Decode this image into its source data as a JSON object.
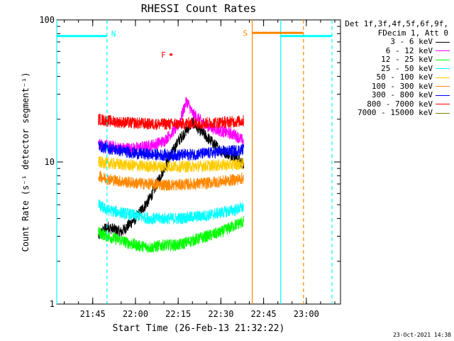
{
  "chart_data": {
    "type": "line",
    "title": "RHESSI Count Rates",
    "xlabel": "Start Time (26-Feb-13 21:32:22)",
    "ylabel": "Count Rate (s⁻¹ detector segment⁻¹)",
    "yscale": "log",
    "ylim": [
      1,
      100
    ],
    "y_ticks": [
      "1",
      "10",
      "100"
    ],
    "x_ticks": [
      "21:45",
      "22:00",
      "22:15",
      "22:30",
      "22:45",
      "23:00"
    ],
    "x_range": [
      "21:32:22",
      "23:12"
    ],
    "grid": false,
    "legend_placement": "right",
    "legend_header": [
      "Det 1f,3f,4f,5f,6f,9f,",
      "FDecim 1, Att 0"
    ],
    "series": [
      {
        "name": "3 - 6 keV",
        "color": "#000000",
        "x": [
          "21:47",
          "21:50",
          "21:55",
          "22:00",
          "22:05",
          "22:10",
          "22:15",
          "22:20",
          "22:25",
          "22:30",
          "22:35",
          "22:38"
        ],
        "values": [
          3.0,
          3.5,
          3.2,
          4.0,
          5.5,
          9.0,
          14.0,
          19.0,
          15.0,
          12.0,
          11.0,
          9.5
        ]
      },
      {
        "name": "6 - 12 keV",
        "color": "#ff00ff",
        "x": [
          "21:47",
          "21:50",
          "21:55",
          "22:00",
          "22:05",
          "22:10",
          "22:15",
          "22:18",
          "22:20",
          "22:25",
          "22:30",
          "22:35",
          "22:38"
        ],
        "values": [
          13.5,
          13.0,
          12.5,
          12.5,
          13.0,
          14.0,
          18.0,
          27.0,
          22.0,
          18.0,
          16.5,
          15.5,
          14.0
        ]
      },
      {
        "name": "12 - 25 keV",
        "color": "#00ff00",
        "x": [
          "21:47",
          "21:50",
          "21:55",
          "22:00",
          "22:05",
          "22:10",
          "22:15",
          "22:20",
          "22:25",
          "22:30",
          "22:35",
          "22:38"
        ],
        "values": [
          3.2,
          3.0,
          2.8,
          2.6,
          2.5,
          2.6,
          2.6,
          2.8,
          3.0,
          3.2,
          3.6,
          3.8
        ]
      },
      {
        "name": "25 - 50 keV",
        "color": "#00ffff",
        "x": [
          "21:47",
          "21:50",
          "21:55",
          "22:00",
          "22:05",
          "22:10",
          "22:15",
          "22:20",
          "22:25",
          "22:30",
          "22:35",
          "22:38"
        ],
        "values": [
          5.0,
          4.6,
          4.4,
          4.2,
          4.0,
          4.0,
          4.0,
          4.1,
          4.2,
          4.4,
          4.6,
          4.8
        ]
      },
      {
        "name": "50 - 100 keV",
        "color": "#ffcc00",
        "x": [
          "21:47",
          "21:50",
          "21:55",
          "22:00",
          "22:05",
          "22:10",
          "22:15",
          "22:20",
          "22:25",
          "22:30",
          "22:35",
          "22:38"
        ],
        "values": [
          10.0,
          9.8,
          9.6,
          9.4,
          9.3,
          9.3,
          9.3,
          9.3,
          9.4,
          9.5,
          9.6,
          9.7
        ]
      },
      {
        "name": "100 - 300 keV",
        "color": "#ff8800",
        "x": [
          "21:47",
          "21:50",
          "21:55",
          "22:00",
          "22:05",
          "22:10",
          "22:15",
          "22:20",
          "22:25",
          "22:30",
          "22:35",
          "22:38"
        ],
        "values": [
          8.0,
          7.6,
          7.3,
          7.1,
          7.0,
          6.9,
          6.9,
          7.0,
          7.1,
          7.3,
          7.5,
          7.7
        ]
      },
      {
        "name": "300 - 800 keV",
        "color": "#0000ff",
        "x": [
          "21:47",
          "21:50",
          "21:55",
          "22:00",
          "22:05",
          "22:10",
          "22:15",
          "22:20",
          "22:25",
          "22:30",
          "22:35",
          "22:38"
        ],
        "values": [
          13.0,
          12.5,
          12.0,
          11.5,
          11.3,
          11.2,
          11.2,
          11.3,
          11.5,
          11.8,
          12.0,
          12.3
        ]
      },
      {
        "name": "800 - 7000 keV",
        "color": "#ff0000",
        "x": [
          "21:47",
          "21:50",
          "21:55",
          "22:00",
          "22:05",
          "22:10",
          "22:15",
          "22:20",
          "22:25",
          "22:30",
          "22:35",
          "22:38"
        ],
        "values": [
          20.0,
          19.5,
          19.0,
          18.8,
          18.5,
          18.5,
          18.5,
          18.7,
          18.8,
          19.0,
          19.2,
          19.5
        ]
      },
      {
        "name": "7000 - 15000 keV",
        "color": "#808000",
        "x": [],
        "values": []
      }
    ],
    "flag_bars": [
      {
        "label": "N",
        "color": "#00ffff",
        "y": 77,
        "segments": [
          [
            "21:32:22",
            "21:50"
          ],
          [
            "22:51",
            "23:09"
          ]
        ]
      },
      {
        "label": "S",
        "color": "#ff8800",
        "y": 81,
        "segments": [
          [
            "22:41",
            "22:59"
          ]
        ]
      },
      {
        "label": "F",
        "color": "#ff0000",
        "y": 57,
        "segments": [
          [
            "22:12",
            "22:13"
          ]
        ]
      }
    ],
    "vertical_markers": [
      {
        "time": "21:32:22",
        "color": "#00ffff",
        "style": "solid"
      },
      {
        "time": "21:50",
        "color": "#00ffff",
        "style": "dashed"
      },
      {
        "time": "22:41",
        "color": "#ff8800",
        "style": "solid"
      },
      {
        "time": "22:51",
        "color": "#00ffff",
        "style": "solid"
      },
      {
        "time": "22:59",
        "color": "#ff8800",
        "style": "dashed"
      },
      {
        "time": "23:09",
        "color": "#00ffff",
        "style": "dashed"
      }
    ]
  },
  "footer_timestamp": "23-Oct-2021 14:38"
}
